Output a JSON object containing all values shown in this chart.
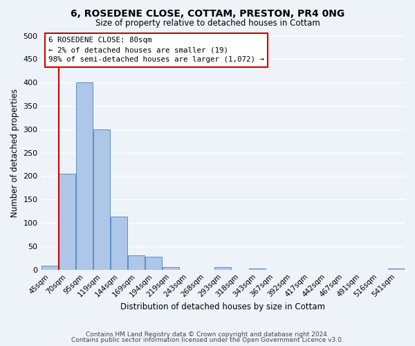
{
  "title": "6, ROSEDENE CLOSE, COTTAM, PRESTON, PR4 0NG",
  "subtitle": "Size of property relative to detached houses in Cottam",
  "xlabel": "Distribution of detached houses by size in Cottam",
  "ylabel": "Number of detached properties",
  "bar_labels": [
    "45sqm",
    "70sqm",
    "95sqm",
    "119sqm",
    "144sqm",
    "169sqm",
    "194sqm",
    "219sqm",
    "243sqm",
    "268sqm",
    "293sqm",
    "318sqm",
    "343sqm",
    "367sqm",
    "392sqm",
    "417sqm",
    "442sqm",
    "467sqm",
    "491sqm",
    "516sqm",
    "541sqm"
  ],
  "bar_values": [
    8,
    205,
    400,
    300,
    113,
    30,
    27,
    5,
    0,
    0,
    5,
    0,
    3,
    0,
    0,
    0,
    0,
    0,
    0,
    0,
    3
  ],
  "bar_color": "#aec6e8",
  "bar_edge_color": "#5a8fc2",
  "vline_color": "#cc0000",
  "vline_x": 0.5,
  "ylim": [
    0,
    500
  ],
  "yticks": [
    0,
    50,
    100,
    150,
    200,
    250,
    300,
    350,
    400,
    450,
    500
  ],
  "annotation_line1": "6 ROSEDENE CLOSE: 80sqm",
  "annotation_line2": "← 2% of detached houses are smaller (19)",
  "annotation_line3": "98% of semi-detached houses are larger (1,072) →",
  "bg_color": "#eef3f9",
  "plot_bg_color": "#eef3f9",
  "grid_color": "#ffffff",
  "footer_line1": "Contains HM Land Registry data © Crown copyright and database right 2024.",
  "footer_line2": "Contains public sector information licensed under the Open Government Licence v3.0."
}
